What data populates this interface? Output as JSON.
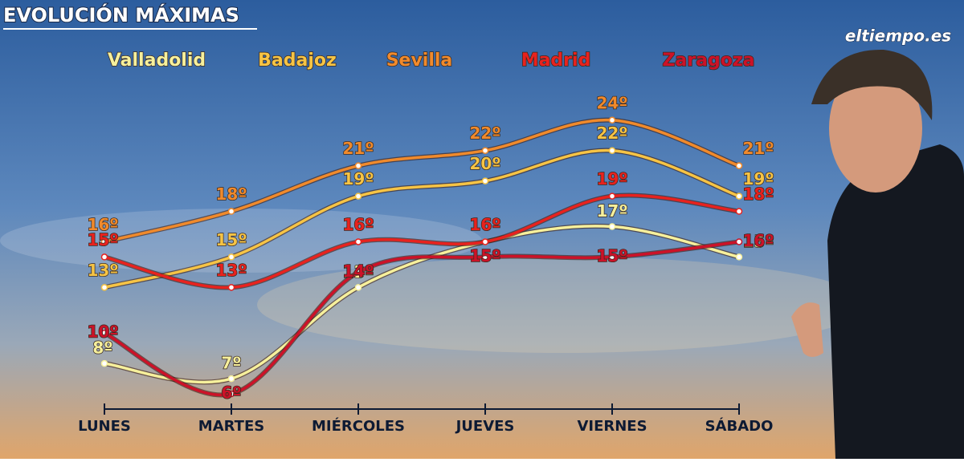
{
  "chart_data": {
    "type": "line",
    "title": "EVOLUCIÓN MÁXIMAS",
    "logo": "eltiempo.es",
    "categories": [
      "LUNES",
      "MARTES",
      "MIÉRCOLES",
      "JUEVES",
      "VIERNES",
      "SÁBADO"
    ],
    "ylim": [
      5,
      29
    ],
    "series": [
      {
        "name": "Valladolid",
        "color": "#f6f09c",
        "values": [
          8,
          7,
          13,
          16,
          17,
          15
        ],
        "value_labels": [
          "8º",
          "7º",
          "13º",
          null,
          "17º",
          "15º"
        ]
      },
      {
        "name": "Badajoz",
        "color": "#f6c445",
        "values": [
          13,
          15,
          19,
          20,
          22,
          19
        ],
        "value_labels": [
          "13º",
          "15º",
          "19º",
          "20º",
          "22º",
          "19º"
        ]
      },
      {
        "name": "Sevilla",
        "color": "#f08a2c",
        "values": [
          16,
          18,
          21,
          22,
          24,
          21
        ],
        "value_labels": [
          "16º",
          "18º",
          "21º",
          "22º",
          "24º",
          "21º"
        ]
      },
      {
        "name": "Madrid",
        "color": "#e8221e",
        "values": [
          15,
          13,
          16,
          16,
          19,
          18
        ],
        "value_labels": [
          "15º",
          "13º",
          "16º",
          "16º",
          "19º",
          "18º"
        ]
      },
      {
        "name": "Zaragoza",
        "color": "#cc1228",
        "values": [
          10,
          6,
          14,
          15,
          15,
          16
        ],
        "value_labels": [
          "10º",
          "6º",
          "14º",
          "15º",
          "15º",
          "16º"
        ]
      }
    ]
  }
}
